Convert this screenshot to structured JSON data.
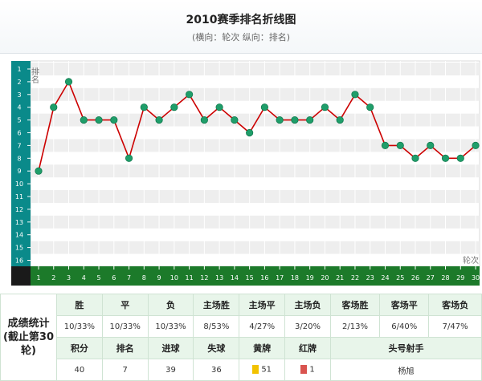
{
  "header": {
    "title": "2010赛季排名折线图",
    "subtitle": "(横向：轮次 纵向：排名)"
  },
  "colors": {
    "line": "#cc0000",
    "point": "#1f9e6a",
    "axis_bg": "#0a8a8a",
    "axis_dark": "#1a1a1a",
    "xaxis_bg": "#1c7a2a",
    "table_header": "#e8f5ea",
    "yellow_card": "#f2c200",
    "red_card": "#d9534f"
  },
  "chart_data": {
    "type": "line",
    "title": "2010赛季排名折线图",
    "subtitle": "(横向：轮次 纵向：排名)",
    "xlabel": "轮次",
    "ylabel": "排名",
    "x": [
      1,
      2,
      3,
      4,
      5,
      6,
      7,
      8,
      9,
      10,
      11,
      12,
      13,
      14,
      15,
      16,
      17,
      18,
      19,
      20,
      21,
      22,
      23,
      24,
      25,
      26,
      27,
      28,
      29,
      30
    ],
    "y": [
      9,
      4,
      2,
      5,
      5,
      5,
      8,
      4,
      5,
      4,
      3,
      5,
      4,
      5,
      6,
      4,
      5,
      5,
      5,
      4,
      5,
      3,
      4,
      7,
      7,
      8,
      7,
      8,
      8,
      7
    ],
    "xticks": [
      "1",
      "2",
      "3",
      "4",
      "5",
      "6",
      "7",
      "8",
      "9",
      "10",
      "11",
      "12",
      "13",
      "14",
      "15",
      "16",
      "17",
      "18",
      "19",
      "20",
      "21",
      "22",
      "23",
      "24",
      "25",
      "26",
      "27",
      "28",
      "29",
      "30"
    ],
    "yticks": [
      "1",
      "2",
      "3",
      "4",
      "5",
      "6",
      "7",
      "8",
      "9",
      "10",
      "11",
      "12",
      "13",
      "14",
      "15",
      "16"
    ],
    "ylim": [
      1,
      16
    ],
    "y_inverted": true,
    "grid": "horizontal bands"
  },
  "stats": {
    "label": "成绩统计(截止第30轮)",
    "row1_headers": [
      "胜",
      "平",
      "负",
      "主场胜",
      "主场平",
      "主场负",
      "客场胜",
      "客场平",
      "客场负"
    ],
    "row1_values": [
      "10/33%",
      "10/33%",
      "10/33%",
      "8/53%",
      "4/27%",
      "3/20%",
      "2/13%",
      "6/40%",
      "7/47%"
    ],
    "row2_headers": [
      "积分",
      "排名",
      "进球",
      "失球",
      "黄牌",
      "红牌",
      "头号射手"
    ],
    "row2_values": [
      "40",
      "7",
      "39",
      "36",
      "51",
      "1",
      "杨旭"
    ]
  }
}
